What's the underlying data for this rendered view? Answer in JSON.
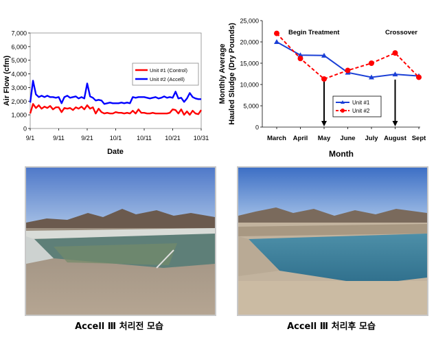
{
  "charts": {
    "airflow": {
      "ylabel": "Air Flow (cfm)",
      "xlabel": "Date",
      "y_ticks": [
        "0",
        "1,000",
        "2,000",
        "3,000",
        "4,000",
        "5,000",
        "6,000",
        "7,000"
      ],
      "x_ticks": [
        "9/1",
        "9/11",
        "9/21",
        "10/1",
        "10/11",
        "10/21",
        "10/31"
      ],
      "legend": [
        "Unit #1 (Control)",
        "Unit #2 (Accell)"
      ]
    },
    "sludge": {
      "ylabel_line1": "Monthly Average",
      "ylabel_line2": "Hauled Sludge (Dry Pounds)",
      "xlabel": "Month",
      "y_ticks": [
        "0",
        "5,000",
        "10,000",
        "15,000",
        "20,000",
        "25,000"
      ],
      "annotation_begin": "Begin Treatment",
      "annotation_crossover": "Crossover",
      "legend": [
        "Unit #1",
        "Unit #2"
      ]
    }
  },
  "captions": {
    "before": "Accell Ⅲ 처리전 모습",
    "after": "Accell Ⅲ 처리후 모습"
  },
  "colors": {
    "unit1_air": "#ff0000",
    "unit2_air": "#0000ff",
    "unit1_sludge": "#1a3fd6",
    "unit2_sludge": "#ff0000"
  },
  "chart_data": [
    {
      "type": "line",
      "ylabel": "Air Flow (cfm)",
      "xlabel": "Date",
      "ylim": [
        0,
        7000
      ],
      "x_range": [
        "9/1",
        "10/31"
      ],
      "x_tick_labels": [
        "9/1",
        "9/11",
        "9/21",
        "10/1",
        "10/11",
        "10/21",
        "10/31"
      ],
      "legend_position": "right",
      "series": [
        {
          "name": "Unit #1 (Control)",
          "color": "#ff0000",
          "dates": [
            "9/1",
            "9/2",
            "9/3",
            "9/4",
            "9/5",
            "9/6",
            "9/7",
            "9/8",
            "9/9",
            "9/10",
            "9/11",
            "9/12",
            "9/13",
            "9/14",
            "9/15",
            "9/16",
            "9/17",
            "9/18",
            "9/19",
            "9/20",
            "9/21",
            "9/22",
            "9/23",
            "9/24",
            "9/25",
            "9/26",
            "9/27",
            "9/28",
            "9/29",
            "9/30",
            "10/1",
            "10/2",
            "10/3",
            "10/4",
            "10/5",
            "10/6",
            "10/7",
            "10/8",
            "10/9",
            "10/10",
            "10/11",
            "10/12",
            "10/13",
            "10/14",
            "10/15",
            "10/16",
            "10/17",
            "10/18",
            "10/19",
            "10/20",
            "10/21",
            "10/22",
            "10/23",
            "10/24",
            "10/25",
            "10/26",
            "10/27",
            "10/28",
            "10/29",
            "10/30",
            "10/31"
          ],
          "values": [
            1100,
            1800,
            1500,
            1700,
            1450,
            1600,
            1500,
            1650,
            1400,
            1550,
            1550,
            1200,
            1500,
            1450,
            1500,
            1350,
            1550,
            1450,
            1600,
            1400,
            1700,
            1450,
            1550,
            1100,
            1450,
            1200,
            1100,
            1150,
            1100,
            1100,
            1200,
            1150,
            1150,
            1100,
            1150,
            1100,
            1300,
            1100,
            1400,
            1150,
            1150,
            1100,
            1100,
            1150,
            1100,
            1100,
            1100,
            1100,
            1100,
            1150,
            1400,
            1350,
            1100,
            1400,
            1000,
            1250,
            1000,
            1300,
            1100,
            1050,
            1350
          ]
        },
        {
          "name": "Unit #2 (Accell)",
          "color": "#0000ff",
          "dates": [
            "9/1",
            "9/2",
            "9/3",
            "9/4",
            "9/5",
            "9/6",
            "9/7",
            "9/8",
            "9/9",
            "9/10",
            "9/11",
            "9/12",
            "9/13",
            "9/14",
            "9/15",
            "9/16",
            "9/17",
            "9/18",
            "9/19",
            "9/20",
            "9/21",
            "9/22",
            "9/23",
            "9/24",
            "9/25",
            "9/26",
            "9/27",
            "9/28",
            "9/29",
            "9/30",
            "10/1",
            "10/2",
            "10/3",
            "10/4",
            "10/5",
            "10/6",
            "10/7",
            "10/8",
            "10/9",
            "10/10",
            "10/11",
            "10/12",
            "10/13",
            "10/14",
            "10/15",
            "10/16",
            "10/17",
            "10/18",
            "10/19",
            "10/20",
            "10/21",
            "10/22",
            "10/23",
            "10/24",
            "10/25",
            "10/26",
            "10/27",
            "10/28",
            "10/29",
            "10/30",
            "10/31"
          ],
          "values": [
            1900,
            3500,
            2500,
            2300,
            2400,
            2300,
            2400,
            2300,
            2300,
            2250,
            2300,
            1850,
            2300,
            2400,
            2250,
            2300,
            2350,
            2200,
            2300,
            2200,
            3300,
            2350,
            2250,
            2050,
            2100,
            2050,
            1800,
            1850,
            1900,
            1850,
            1850,
            1850,
            1900,
            1850,
            1900,
            1850,
            2300,
            2250,
            2300,
            2300,
            2300,
            2250,
            2200,
            2250,
            2300,
            2200,
            2250,
            2350,
            2250,
            2300,
            2250,
            2700,
            2200,
            2250,
            1950,
            2200,
            2600,
            2300,
            2200,
            2150,
            2150
          ]
        }
      ]
    },
    {
      "type": "line",
      "ylabel": "Monthly Average Hauled Sludge (Dry Pounds)",
      "xlabel": "Month",
      "categories": [
        "March",
        "April",
        "May",
        "June",
        "July",
        "August",
        "Sept"
      ],
      "ylim": [
        0,
        25000
      ],
      "legend_position": "bottom-center",
      "annotations": [
        {
          "text": "Begin Treatment",
          "category": "April"
        },
        {
          "text": "Crossover",
          "category": "August"
        }
      ],
      "arrows": [
        "May",
        "August"
      ],
      "series": [
        {
          "name": "Unit #1",
          "color": "#1a3fd6",
          "values": [
            20000,
            16900,
            16800,
            12800,
            11700,
            12400,
            12000
          ]
        },
        {
          "name": "Unit #2",
          "color": "#ff0000",
          "values": [
            22000,
            16100,
            11300,
            13300,
            15000,
            17400,
            11700
          ]
        }
      ]
    }
  ]
}
